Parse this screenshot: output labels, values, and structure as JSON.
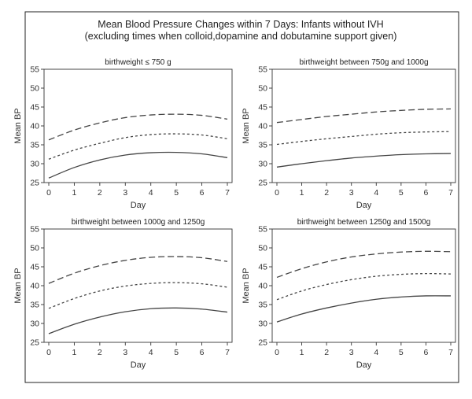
{
  "figure": {
    "title_line1": "Mean Blood Pressure Changes within 7 Days: Infants without IVH",
    "title_line2": "(excluding times when colloid,dopamine and dobutamine support given)"
  },
  "chart_data": [
    {
      "type": "line",
      "title": "birthweight ≤ 750 g",
      "xlabel": "Day",
      "ylabel": "Mean BP",
      "xlim": [
        0,
        7
      ],
      "ylim": [
        25,
        55
      ],
      "xticks": [
        0,
        1,
        2,
        3,
        4,
        5,
        6,
        7
      ],
      "yticks": [
        25,
        30,
        35,
        40,
        45,
        50,
        55
      ],
      "x": [
        0,
        1,
        2,
        3,
        4,
        5,
        6,
        7
      ],
      "series": [
        {
          "style": "solid",
          "values": [
            26.2,
            29.0,
            31.0,
            32.3,
            32.9,
            33.0,
            32.6,
            31.6
          ]
        },
        {
          "style": "dotted",
          "values": [
            31.2,
            33.6,
            35.4,
            36.9,
            37.7,
            37.9,
            37.6,
            36.6
          ]
        },
        {
          "style": "dashed",
          "values": [
            36.3,
            38.9,
            40.8,
            42.2,
            42.9,
            43.1,
            42.8,
            41.8
          ]
        }
      ]
    },
    {
      "type": "line",
      "title": "birthweight between 750g and 1000g",
      "xlabel": "Day",
      "ylabel": "Mean BP",
      "xlim": [
        0,
        7
      ],
      "ylim": [
        25,
        55
      ],
      "xticks": [
        0,
        1,
        2,
        3,
        4,
        5,
        6,
        7
      ],
      "yticks": [
        25,
        30,
        35,
        40,
        45,
        50,
        55
      ],
      "x": [
        0,
        1,
        2,
        3,
        4,
        5,
        6,
        7
      ],
      "series": [
        {
          "style": "solid",
          "values": [
            29.1,
            30.0,
            30.8,
            31.5,
            32.0,
            32.4,
            32.6,
            32.7
          ]
        },
        {
          "style": "dotted",
          "values": [
            35.1,
            35.9,
            36.6,
            37.2,
            37.8,
            38.2,
            38.4,
            38.5
          ]
        },
        {
          "style": "dashed",
          "values": [
            40.9,
            41.7,
            42.5,
            43.1,
            43.7,
            44.1,
            44.4,
            44.5
          ]
        }
      ]
    },
    {
      "type": "line",
      "title": "birthweight between 1000g and 1250g",
      "xlabel": "Day",
      "ylabel": "Mean BP",
      "xlim": [
        0,
        7
      ],
      "ylim": [
        25,
        55
      ],
      "xticks": [
        0,
        1,
        2,
        3,
        4,
        5,
        6,
        7
      ],
      "yticks": [
        25,
        30,
        35,
        40,
        45,
        50,
        55
      ],
      "x": [
        0,
        1,
        2,
        3,
        4,
        5,
        6,
        7
      ],
      "series": [
        {
          "style": "solid",
          "values": [
            27.3,
            29.8,
            31.7,
            33.1,
            33.9,
            34.1,
            33.8,
            33.0
          ]
        },
        {
          "style": "dotted",
          "values": [
            34.0,
            36.6,
            38.6,
            39.9,
            40.6,
            40.8,
            40.5,
            39.6
          ]
        },
        {
          "style": "dashed",
          "values": [
            40.6,
            43.3,
            45.3,
            46.7,
            47.5,
            47.7,
            47.4,
            46.4
          ]
        }
      ]
    },
    {
      "type": "line",
      "title": "birthweight between 1250g and 1500g",
      "xlabel": "Day",
      "ylabel": "Mean BP",
      "xlim": [
        0,
        7
      ],
      "ylim": [
        25,
        55
      ],
      "xticks": [
        0,
        1,
        2,
        3,
        4,
        5,
        6,
        7
      ],
      "yticks": [
        25,
        30,
        35,
        40,
        45,
        50,
        55
      ],
      "x": [
        0,
        1,
        2,
        3,
        4,
        5,
        6,
        7
      ],
      "series": [
        {
          "style": "solid",
          "values": [
            30.4,
            32.5,
            34.1,
            35.4,
            36.4,
            37.0,
            37.3,
            37.3
          ]
        },
        {
          "style": "dotted",
          "values": [
            36.3,
            38.6,
            40.3,
            41.6,
            42.5,
            43.0,
            43.2,
            43.1
          ]
        },
        {
          "style": "dashed",
          "values": [
            42.2,
            44.5,
            46.3,
            47.6,
            48.4,
            48.9,
            49.1,
            49.0
          ]
        }
      ]
    }
  ]
}
